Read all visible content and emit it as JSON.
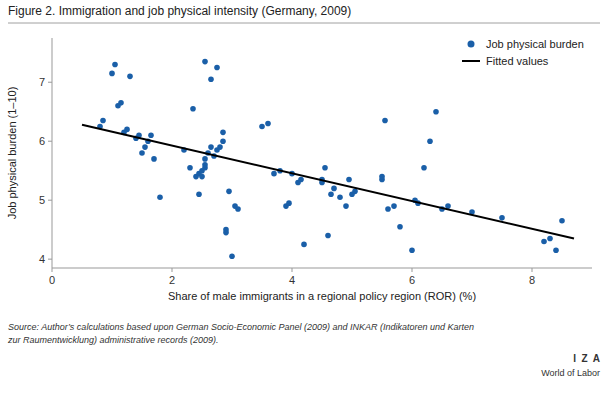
{
  "chart_data": {
    "type": "scatter",
    "title": "Figure 2. Immigration and job physical intensity (Germany, 2009)",
    "xlabel": "Share of male immigrants in a regional policy region (ROR) (%)",
    "ylabel": "Job physical burden (1–10)",
    "annotations": [
      "Source: Author’s calculations based upon German Socio-Economic Panel (2009) and INKAR (Indikatoren und Karten",
      "zur Raumentwicklung) administrative records (2009).",
      "I  Z  A",
      "World of Labor"
    ],
    "xlim": [
      0,
      9
    ],
    "ylim": [
      3.85,
      7.75
    ],
    "xticks": [
      0,
      2,
      4,
      6,
      8
    ],
    "yticks": [
      4,
      5,
      6,
      7
    ],
    "grid": false,
    "legend": "upper right",
    "series": [
      {
        "name": "Job physical burden",
        "type": "scatter",
        "marker": "circle",
        "color": "#1a5fa8",
        "x": [
          0.8,
          0.85,
          1.0,
          1.05,
          1.1,
          1.15,
          1.2,
          1.25,
          1.3,
          1.4,
          1.45,
          1.5,
          1.55,
          1.6,
          1.65,
          1.7,
          1.8,
          2.2,
          2.3,
          2.35,
          2.4,
          2.45,
          2.45,
          2.5,
          2.5,
          2.55,
          2.55,
          2.55,
          2.55,
          2.6,
          2.65,
          2.65,
          2.7,
          2.75,
          2.75,
          2.8,
          2.85,
          2.85,
          2.9,
          2.9,
          2.95,
          3.0,
          3.05,
          3.1,
          3.5,
          3.6,
          3.7,
          3.8,
          3.9,
          3.95,
          4.0,
          4.1,
          4.15,
          4.2,
          4.5,
          4.5,
          4.55,
          4.6,
          4.65,
          4.7,
          4.8,
          4.9,
          4.95,
          5.0,
          5.05,
          5.5,
          5.5,
          5.55,
          5.6,
          5.7,
          5.8,
          6.0,
          6.05,
          6.1,
          6.2,
          6.3,
          6.4,
          6.5,
          6.6,
          7.0,
          7.5,
          8.2,
          8.3,
          8.4,
          8.5
        ],
        "values": [
          6.25,
          6.35,
          7.15,
          7.3,
          6.6,
          6.65,
          6.15,
          6.2,
          7.1,
          6.05,
          6.1,
          5.8,
          5.9,
          6.0,
          6.1,
          5.7,
          5.05,
          5.85,
          5.55,
          6.55,
          5.4,
          5.45,
          5.1,
          5.4,
          5.5,
          5.55,
          5.6,
          5.7,
          7.35,
          5.8,
          5.9,
          7.05,
          5.75,
          5.85,
          7.25,
          5.9,
          6.0,
          6.15,
          4.45,
          4.5,
          5.15,
          4.05,
          4.9,
          4.85,
          6.25,
          6.3,
          5.45,
          5.5,
          4.9,
          4.95,
          5.45,
          5.3,
          5.35,
          4.25,
          5.3,
          5.35,
          5.55,
          4.4,
          5.1,
          5.2,
          5.05,
          4.9,
          5.35,
          5.1,
          5.15,
          5.35,
          5.4,
          6.35,
          4.85,
          4.9,
          4.55,
          4.15,
          5.0,
          4.95,
          5.55,
          6.0,
          6.5,
          4.85,
          4.9,
          4.8,
          4.7,
          4.3,
          4.35,
          4.15,
          4.65
        ]
      },
      {
        "name": "Fitted values",
        "type": "line",
        "line_style": "solid",
        "color": "#000000",
        "x": [
          0.5,
          8.7
        ],
        "values": [
          6.28,
          4.35
        ]
      }
    ]
  }
}
